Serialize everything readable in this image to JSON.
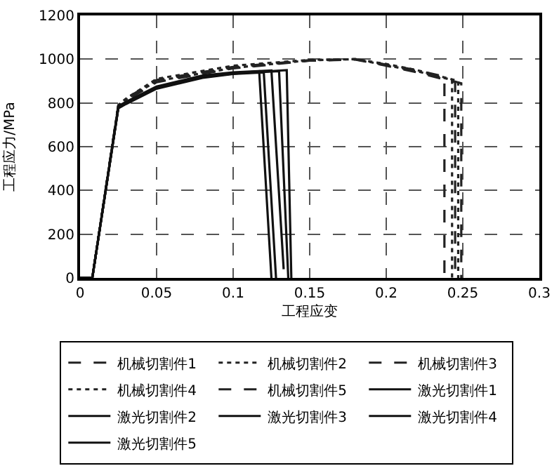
{
  "chart_data": {
    "type": "line",
    "xlabel": "工程应变",
    "ylabel": "工程应力/MPa",
    "xlim": [
      0,
      0.3
    ],
    "ylim": [
      0,
      1200
    ],
    "xticks": [
      0,
      0.05,
      0.1,
      0.15,
      0.2,
      0.25,
      0.3
    ],
    "yticks": [
      0,
      200,
      400,
      600,
      800,
      1000,
      1200
    ],
    "grid": true,
    "legend": "bottom",
    "marker": "none",
    "series": [
      {
        "name": "机械切割件1",
        "color": "#222222",
        "line_style": "dashed",
        "x": [
          0,
          0.008,
          0.025,
          0.03,
          0.05,
          0.1,
          0.15,
          0.18,
          0.2,
          0.22,
          0.238,
          0.238
        ],
        "values": [
          0,
          0,
          790,
          820,
          905,
          965,
          995,
          1000,
          975,
          950,
          920,
          0
        ]
      },
      {
        "name": "机械切割件2",
        "color": "#222222",
        "line_style": "dotted",
        "x": [
          0,
          0.008,
          0.025,
          0.03,
          0.05,
          0.1,
          0.15,
          0.18,
          0.2,
          0.22,
          0.243,
          0.243
        ],
        "values": [
          0,
          0,
          785,
          815,
          900,
          960,
          995,
          1000,
          972,
          945,
          905,
          0
        ]
      },
      {
        "name": "机械切割件3",
        "color": "#222222",
        "line_style": "dashed",
        "x": [
          0,
          0.008,
          0.025,
          0.03,
          0.05,
          0.1,
          0.15,
          0.18,
          0.2,
          0.22,
          0.245,
          0.245
        ],
        "values": [
          0,
          0,
          780,
          810,
          895,
          958,
          993,
          998,
          970,
          940,
          895,
          0
        ]
      },
      {
        "name": "机械切割件4",
        "color": "#222222",
        "line_style": "dotted",
        "x": [
          0,
          0.008,
          0.025,
          0.03,
          0.05,
          0.1,
          0.15,
          0.18,
          0.2,
          0.22,
          0.247,
          0.247
        ],
        "values": [
          0,
          0,
          790,
          820,
          910,
          970,
          997,
          1000,
          978,
          950,
          900,
          0
        ]
      },
      {
        "name": "机械切割件5",
        "color": "#222222",
        "line_style": "dashed",
        "x": [
          0,
          0.008,
          0.025,
          0.03,
          0.05,
          0.1,
          0.15,
          0.18,
          0.2,
          0.22,
          0.249,
          0.249
        ],
        "values": [
          0,
          0,
          785,
          815,
          905,
          963,
          994,
          999,
          974,
          945,
          890,
          0
        ]
      },
      {
        "name": "激光切割件1",
        "color": "#111111",
        "line_style": "solid",
        "x": [
          0,
          0.008,
          0.025,
          0.03,
          0.05,
          0.08,
          0.1,
          0.117,
          0.125
        ],
        "values": [
          0,
          0,
          780,
          800,
          870,
          920,
          935,
          945,
          0
        ]
      },
      {
        "name": "激光切割件2",
        "color": "#111111",
        "line_style": "solid",
        "x": [
          0,
          0.008,
          0.025,
          0.03,
          0.05,
          0.08,
          0.1,
          0.12,
          0.128
        ],
        "values": [
          0,
          0,
          775,
          795,
          865,
          915,
          932,
          940,
          0
        ]
      },
      {
        "name": "激光切割件3",
        "color": "#111111",
        "line_style": "solid",
        "x": [
          0,
          0.008,
          0.025,
          0.03,
          0.05,
          0.08,
          0.1,
          0.125,
          0.133
        ],
        "values": [
          0,
          0,
          785,
          805,
          875,
          925,
          940,
          948,
          40
        ]
      },
      {
        "name": "激光切割件4",
        "color": "#111111",
        "line_style": "solid",
        "x": [
          0,
          0.008,
          0.025,
          0.03,
          0.05,
          0.08,
          0.1,
          0.13,
          0.136
        ],
        "values": [
          0,
          0,
          780,
          800,
          870,
          918,
          935,
          945,
          0
        ]
      },
      {
        "name": "激光切割件5",
        "color": "#111111",
        "line_style": "solid",
        "x": [
          0,
          0.008,
          0.025,
          0.03,
          0.05,
          0.08,
          0.1,
          0.135,
          0.138
        ],
        "values": [
          0,
          0,
          778,
          798,
          868,
          918,
          934,
          950,
          0
        ]
      }
    ]
  }
}
